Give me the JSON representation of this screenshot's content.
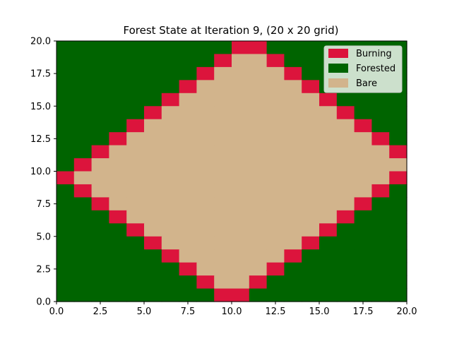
{
  "chart_data": {
    "type": "heatmap",
    "title": "Forest State at Iteration 9, (20 x 20 grid)",
    "xlabel": "",
    "ylabel": "",
    "grid_size": 20,
    "xlim": [
      0,
      20
    ],
    "ylim": [
      0,
      20
    ],
    "grid": false,
    "xticks": [
      "0.0",
      "2.5",
      "5.0",
      "7.5",
      "10.0",
      "12.5",
      "15.0",
      "17.5",
      "20.0"
    ],
    "yticks": [
      "0.0",
      "2.5",
      "5.0",
      "7.5",
      "10.0",
      "12.5",
      "15.0",
      "17.5",
      "20.0"
    ],
    "states": {
      "burning": 2,
      "forested": 1,
      "bare": 0
    },
    "burn_center": [
      10,
      10
    ],
    "burn_radius": 9,
    "cells_row_top_to_bottom": [
      "11111111112211111111",
      "11111111120021111111",
      "11111111200002111111",
      "11111112000000211111",
      "11111120000000021111",
      "11111200000000002111",
      "11112000000000000211",
      "11120000000000000021",
      "11200000000000000002",
      "12000000000000000000",
      "20000000000000000002",
      "12000000000000000021",
      "11200000000000000211",
      "11120000000000002111",
      "11112000000000021111",
      "11111200000000211111",
      "11111120000002111111",
      "11111112000021111111",
      "11111111200211111111",
      "11111111122111111111"
    ],
    "legend": {
      "placement": "top-right",
      "entries": [
        {
          "label": "Burning",
          "color": "#dc143c"
        },
        {
          "label": "Forested",
          "color": "#006400"
        },
        {
          "label": "Bare",
          "color": "#d2b48c"
        }
      ]
    },
    "colors": {
      "burning": "#dc143c",
      "forested": "#006400",
      "bare": "#d2b48c"
    }
  }
}
